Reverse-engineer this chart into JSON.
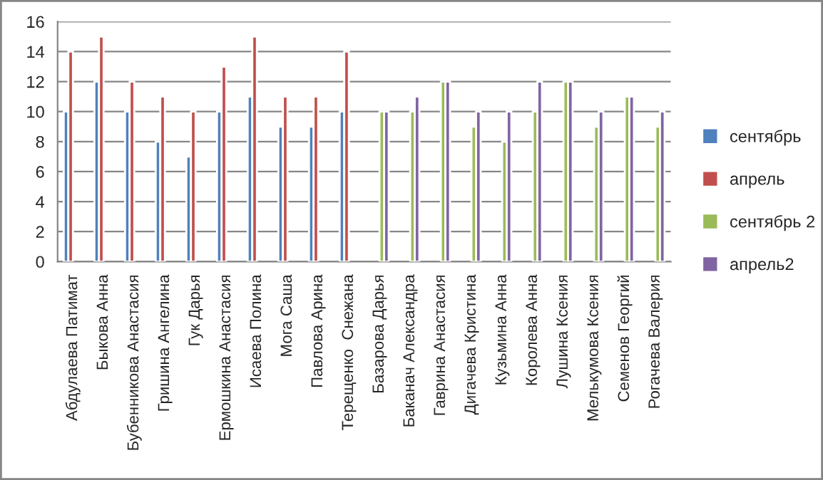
{
  "chart_data": {
    "type": "bar",
    "categories": [
      "Абдулаева Патимат",
      "Быкова Анна",
      "Бубенникова Анастасия",
      "Гришина Ангелина",
      "Гук Дарья",
      "Ермошкина Анастасия",
      "Исаева Полина",
      "Мога Саша",
      "Павлова Арина",
      "Терещенко  Снежана",
      "Базарова Дарья",
      "Баканач Александра",
      "Гаврина Анастасия",
      "Дигачева Кристина",
      "Кузьмина Анна",
      "Королева Анна",
      "Лушина Ксения",
      "Мелькумова Ксения",
      "Семенов Георгий",
      "Рогачева Валерия"
    ],
    "series": [
      {
        "name": "сентябрь",
        "color": "#4f81bd",
        "values": [
          10,
          12,
          10,
          8,
          7,
          10,
          11,
          9,
          9,
          10,
          null,
          null,
          null,
          null,
          null,
          null,
          null,
          null,
          null,
          null
        ]
      },
      {
        "name": "апрель",
        "color": "#c0504d",
        "values": [
          14,
          15,
          12,
          11,
          10,
          13,
          15,
          11,
          11,
          14,
          null,
          null,
          null,
          null,
          null,
          null,
          null,
          null,
          null,
          null
        ]
      },
      {
        "name": "сентябрь 2",
        "color": "#9bbb59",
        "values": [
          null,
          null,
          null,
          null,
          null,
          null,
          null,
          null,
          null,
          null,
          10,
          10,
          12,
          9,
          8,
          10,
          12,
          9,
          11,
          9
        ]
      },
      {
        "name": "апрель2",
        "color": "#8064a2",
        "values": [
          null,
          null,
          null,
          null,
          null,
          null,
          null,
          null,
          null,
          null,
          10,
          11,
          12,
          10,
          10,
          12,
          12,
          10,
          11,
          10
        ]
      }
    ],
    "ylim": [
      0,
      16
    ],
    "yticks": [
      0,
      2,
      4,
      6,
      8,
      10,
      12,
      14,
      16
    ],
    "grid": "y",
    "legend": "right"
  }
}
